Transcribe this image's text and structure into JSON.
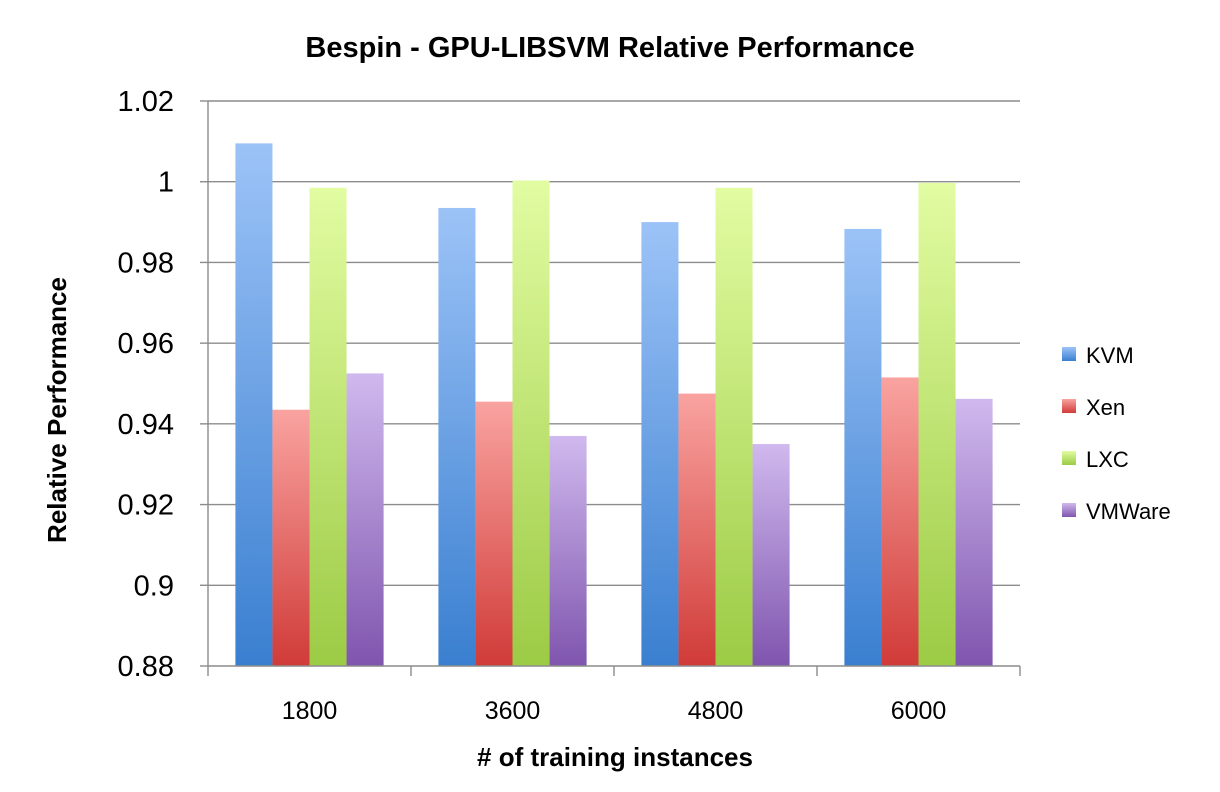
{
  "chart_data": {
    "type": "bar",
    "title": "Bespin - GPU-LIBSVM Relative Performance",
    "xlabel": "# of training instances",
    "ylabel": "Relative Performance",
    "categories": [
      "1800",
      "3600",
      "4800",
      "6000"
    ],
    "ylim": [
      0.88,
      1.02
    ],
    "yticks": [
      0.88,
      0.9,
      0.92,
      0.94,
      0.96,
      0.98,
      1,
      1.02
    ],
    "ytick_labels": [
      "0.88",
      "0.9",
      "0.92",
      "0.94",
      "0.96",
      "0.98",
      "1",
      "1.02"
    ],
    "grid": true,
    "legend_position": "right",
    "series": [
      {
        "name": "KVM",
        "color_top": "#9cc3f7",
        "color_bottom": "#3a7fd0",
        "values": [
          1.0095,
          0.9935,
          0.99,
          0.9883
        ]
      },
      {
        "name": "Xen",
        "color_top": "#f9a3a0",
        "color_bottom": "#d03b38",
        "values": [
          0.9435,
          0.9455,
          0.9475,
          0.9515
        ]
      },
      {
        "name": "LXC",
        "color_top": "#e2fca2",
        "color_bottom": "#9ccb45",
        "values": [
          0.9985,
          1.0003,
          0.9985,
          0.9997
        ]
      },
      {
        "name": "VMWare",
        "color_top": "#d0b9ee",
        "color_bottom": "#7f55ae",
        "values": [
          0.9525,
          0.937,
          0.935,
          0.9462
        ]
      }
    ]
  }
}
